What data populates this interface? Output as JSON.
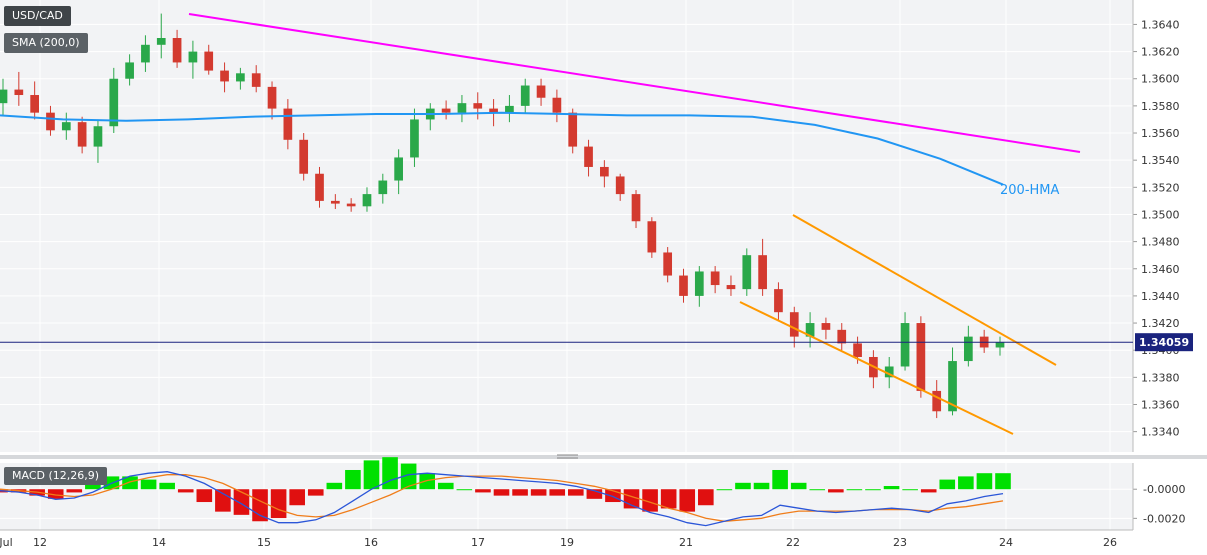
{
  "chart_data": [
    {
      "type": "candlestick",
      "symbol": "USD/CAD",
      "indicator_label": "SMA (200,0)",
      "last_price_label": "1.34059",
      "last_price": 1.34059,
      "ylim": [
        1.3325,
        1.3658
      ],
      "y_ticks": [
        "1.3340",
        "1.3360",
        "1.3380",
        "1.3400",
        "1.3420",
        "1.3440",
        "1.3460",
        "1.3480",
        "1.3500",
        "1.3520",
        "1.3540",
        "1.3560",
        "1.3580",
        "1.3600",
        "1.3620",
        "1.3640"
      ],
      "x_ticks": [
        "Jul",
        "12",
        "14",
        "15",
        "16",
        "17",
        "19",
        "21",
        "22",
        "23",
        "24",
        "26"
      ],
      "hma_label": "200-HMA",
      "colors": {
        "up": "#2aa84a",
        "down": "#d33a2f",
        "hma": "#2196f3",
        "trendline": "#ff00ff",
        "channel": "#ff9900",
        "price_line": "#1a237e"
      },
      "hma_200": [
        1.3573,
        1.357,
        1.3569,
        1.357,
        1.3572,
        1.3573,
        1.3574,
        1.3574,
        1.3575,
        1.3574,
        1.3573,
        1.3573,
        1.3572,
        1.3566,
        1.3556,
        1.3541,
        1.3522
      ],
      "candles": [
        [
          1.3582,
          1.36,
          1.3573,
          1.3592
        ],
        [
          1.3592,
          1.3605,
          1.358,
          1.3588
        ],
        [
          1.3588,
          1.3598,
          1.357,
          1.3575
        ],
        [
          1.3575,
          1.358,
          1.3558,
          1.3562
        ],
        [
          1.3562,
          1.3575,
          1.3555,
          1.3568
        ],
        [
          1.3568,
          1.3572,
          1.3545,
          1.355
        ],
        [
          1.355,
          1.357,
          1.3538,
          1.3565
        ],
        [
          1.3565,
          1.3608,
          1.356,
          1.36
        ],
        [
          1.36,
          1.3618,
          1.3595,
          1.3612
        ],
        [
          1.3612,
          1.3632,
          1.3605,
          1.3625
        ],
        [
          1.3625,
          1.3648,
          1.3615,
          1.363
        ],
        [
          1.363,
          1.3636,
          1.3608,
          1.3612
        ],
        [
          1.3612,
          1.3628,
          1.36,
          1.362
        ],
        [
          1.362,
          1.3625,
          1.3603,
          1.3606
        ],
        [
          1.3606,
          1.3612,
          1.359,
          1.3598
        ],
        [
          1.3598,
          1.3608,
          1.3592,
          1.3604
        ],
        [
          1.3604,
          1.361,
          1.359,
          1.3594
        ],
        [
          1.3594,
          1.3598,
          1.357,
          1.3578
        ],
        [
          1.3578,
          1.3585,
          1.3548,
          1.3555
        ],
        [
          1.3555,
          1.356,
          1.3525,
          1.353
        ],
        [
          1.353,
          1.3535,
          1.3505,
          1.351
        ],
        [
          1.351,
          1.3515,
          1.3504,
          1.3508
        ],
        [
          1.3508,
          1.3512,
          1.3502,
          1.3506
        ],
        [
          1.3506,
          1.352,
          1.3502,
          1.3515
        ],
        [
          1.3515,
          1.353,
          1.3508,
          1.3525
        ],
        [
          1.3525,
          1.3548,
          1.3515,
          1.3542
        ],
        [
          1.3542,
          1.3578,
          1.3535,
          1.357
        ],
        [
          1.357,
          1.3582,
          1.3562,
          1.3578
        ],
        [
          1.3578,
          1.3584,
          1.357,
          1.3575
        ],
        [
          1.3575,
          1.3588,
          1.3568,
          1.3582
        ],
        [
          1.3582,
          1.359,
          1.357,
          1.3578
        ],
        [
          1.3578,
          1.3585,
          1.3565,
          1.3575
        ],
        [
          1.3575,
          1.3588,
          1.3568,
          1.358
        ],
        [
          1.358,
          1.36,
          1.3575,
          1.3595
        ],
        [
          1.3595,
          1.36,
          1.358,
          1.3586
        ],
        [
          1.3586,
          1.3592,
          1.3568,
          1.3575
        ],
        [
          1.3575,
          1.3578,
          1.3545,
          1.355
        ],
        [
          1.355,
          1.3555,
          1.3528,
          1.3535
        ],
        [
          1.3535,
          1.354,
          1.352,
          1.3528
        ],
        [
          1.3528,
          1.353,
          1.351,
          1.3515
        ],
        [
          1.3515,
          1.3518,
          1.349,
          1.3495
        ],
        [
          1.3495,
          1.3498,
          1.3468,
          1.3472
        ],
        [
          1.3472,
          1.3476,
          1.345,
          1.3455
        ],
        [
          1.3455,
          1.346,
          1.3435,
          1.344
        ],
        [
          1.344,
          1.3462,
          1.3432,
          1.3458
        ],
        [
          1.3458,
          1.3462,
          1.3442,
          1.3448
        ],
        [
          1.3448,
          1.3455,
          1.344,
          1.3445
        ],
        [
          1.3445,
          1.3475,
          1.344,
          1.347
        ],
        [
          1.347,
          1.3482,
          1.344,
          1.3445
        ],
        [
          1.3445,
          1.345,
          1.3422,
          1.3428
        ],
        [
          1.3428,
          1.3432,
          1.3402,
          1.341
        ],
        [
          1.341,
          1.3428,
          1.3402,
          1.342
        ],
        [
          1.342,
          1.3424,
          1.3408,
          1.3415
        ],
        [
          1.3415,
          1.342,
          1.34,
          1.3405
        ],
        [
          1.3405,
          1.341,
          1.339,
          1.3395
        ],
        [
          1.3395,
          1.34,
          1.3372,
          1.338
        ],
        [
          1.338,
          1.3395,
          1.3372,
          1.3388
        ],
        [
          1.3388,
          1.3428,
          1.3385,
          1.342
        ],
        [
          1.342,
          1.3425,
          1.3365,
          1.337
        ],
        [
          1.337,
          1.3378,
          1.335,
          1.3355
        ],
        [
          1.3355,
          1.3402,
          1.3352,
          1.3392
        ],
        [
          1.3392,
          1.3418,
          1.3388,
          1.341
        ],
        [
          1.341,
          1.3415,
          1.3398,
          1.3402
        ],
        [
          1.3402,
          1.341,
          1.3396,
          1.3406
        ]
      ]
    },
    {
      "type": "macd",
      "indicator_label": "MACD (12,26,9)",
      "ylim": [
        -0.0028,
        0.0018
      ],
      "y_ticks": [
        "-0.0000",
        "-0.0020"
      ],
      "colors": {
        "macd": "#2b56d8",
        "signal": "#f07d1a",
        "hist_up": "#00e000",
        "hist_down": "#e01010"
      },
      "macd": [
        -0.0001,
        -0.0002,
        -0.0004,
        -0.0007,
        -0.0006,
        -0.0002,
        0.0004,
        0.0009,
        0.0011,
        0.0012,
        0.0009,
        0.0004,
        -0.0003,
        -0.001,
        -0.0018,
        -0.0023,
        -0.0023,
        -0.0021,
        -0.0016,
        -0.0008,
        0.0,
        0.0006,
        0.001,
        0.0011,
        0.001,
        0.0009,
        0.0008,
        0.0007,
        0.0006,
        0.0005,
        0.0004,
        0.0002,
        -0.0001,
        -0.0005,
        -0.0011,
        -0.0016,
        -0.0019,
        -0.0023,
        -0.0025,
        -0.0022,
        -0.0019,
        -0.0018,
        -0.0011,
        -0.0013,
        -0.0015,
        -0.0016,
        -0.0015,
        -0.0014,
        -0.0013,
        -0.0014,
        -0.0016,
        -0.001,
        -0.0008,
        -0.0005,
        -0.0003
      ],
      "signal": [
        0.0,
        -0.0001,
        -0.0002,
        -0.0004,
        -0.0005,
        -0.0004,
        0.0,
        0.0005,
        0.0008,
        0.001,
        0.001,
        0.0008,
        0.0004,
        -0.0002,
        -0.0008,
        -0.0014,
        -0.0018,
        -0.0019,
        -0.0018,
        -0.0014,
        -0.0009,
        -0.0004,
        0.0002,
        0.0006,
        0.0008,
        0.0009,
        0.0009,
        0.0009,
        0.0008,
        0.0007,
        0.0006,
        0.0004,
        0.0002,
        -0.0001,
        -0.0005,
        -0.0009,
        -0.0013,
        -0.0016,
        -0.002,
        -0.0022,
        -0.0021,
        -0.002,
        -0.0017,
        -0.0015,
        -0.0015,
        -0.0015,
        -0.0015,
        -0.0014,
        -0.0014,
        -0.0014,
        -0.0015,
        -0.0013,
        -0.0012,
        -0.001,
        -0.0008
      ]
    }
  ]
}
